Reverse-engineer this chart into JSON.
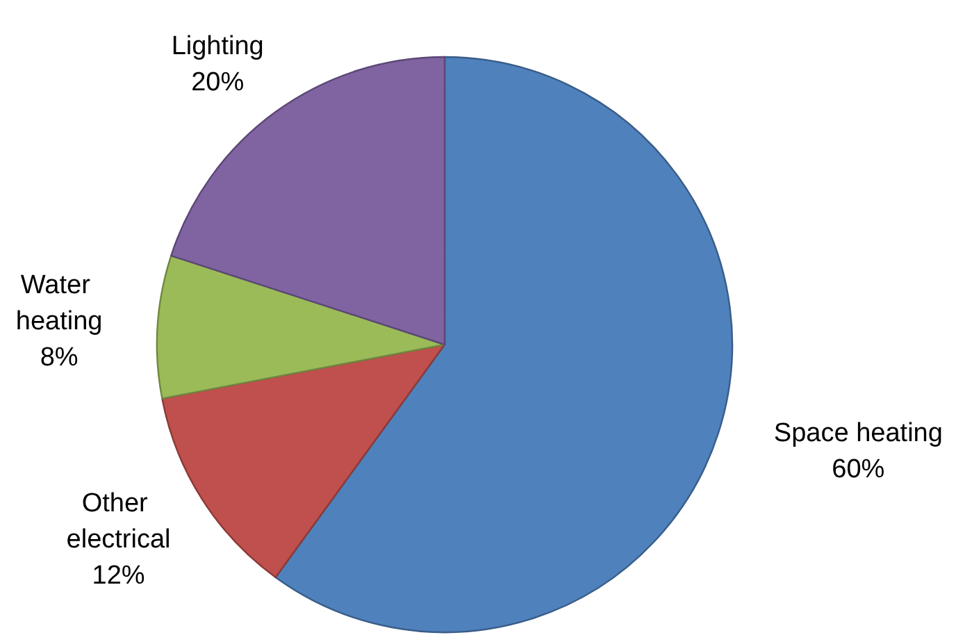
{
  "chart_data": {
    "type": "pie",
    "categories": [
      "Space heating",
      "Other electrical",
      "Water heating",
      "Lighting"
    ],
    "values": [
      60,
      12,
      8,
      20
    ],
    "colors": [
      "#4f81bd",
      "#c0504d",
      "#9bbb59",
      "#8064a2"
    ],
    "value_labels": [
      "60%",
      "12%",
      "8%",
      "20%"
    ]
  }
}
